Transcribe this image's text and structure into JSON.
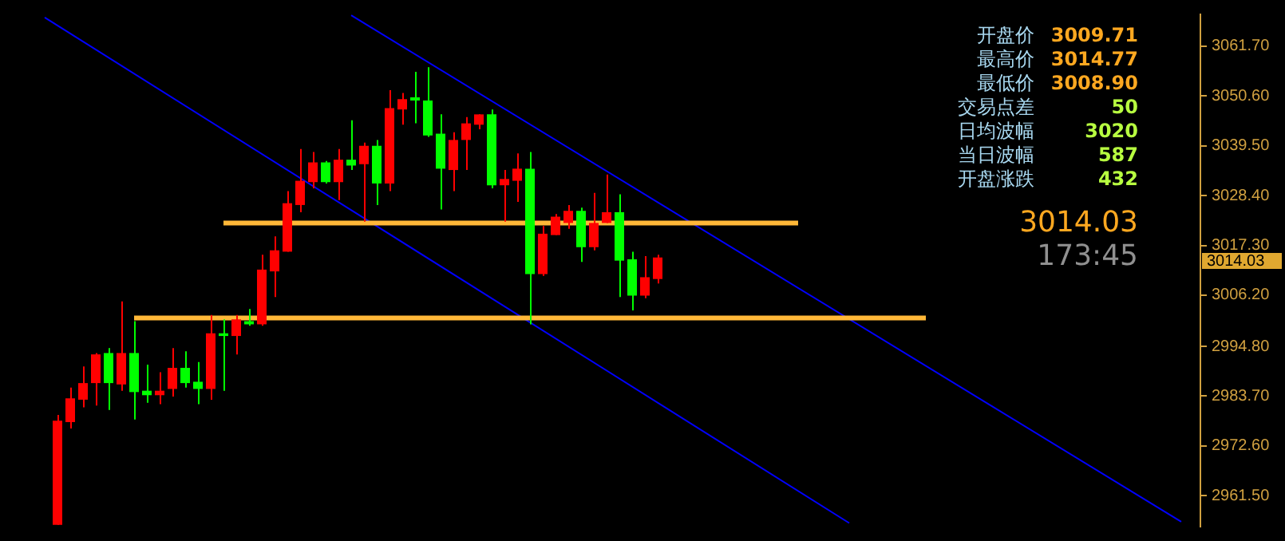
{
  "chart_data": {
    "type": "candlestick",
    "tick_labels": "y",
    "categories": [
      null,
      null,
      null,
      null,
      null,
      null,
      null,
      null,
      null,
      null,
      null,
      null,
      null,
      null,
      null,
      null,
      null,
      null,
      null,
      null,
      null,
      null,
      null,
      null,
      null,
      null,
      null,
      null,
      null,
      null,
      null,
      null,
      null,
      null,
      null,
      null,
      null,
      null,
      null,
      null,
      null,
      null,
      null,
      null,
      null,
      null,
      null,
      null,
      null,
      null,
      null,
      null,
      null,
      null,
      null,
      null,
      null,
      null,
      null,
      null,
      null,
      null,
      null,
      null,
      null,
      null,
      null,
      null,
      null,
      null,
      null,
      null,
      null,
      null,
      null,
      null,
      null,
      null,
      null,
      null,
      null,
      null,
      null,
      null,
      null,
      null,
      null,
      null,
      null,
      null,
      null,
      null,
      null,
      null
    ],
    "ylim": [
      2954.6,
      3068.8
    ],
    "yticks": [
      {
        "value": 2961.5,
        "label": "2961.50"
      },
      {
        "value": 2972.6,
        "label": "2972.60"
      },
      {
        "value": 2983.7,
        "label": "2983.70"
      },
      {
        "value": 2994.8,
        "label": "2994.80"
      },
      {
        "value": 3006.2,
        "label": "3006.20"
      },
      {
        "value": 3017.3,
        "label": "3017.30"
      },
      {
        "value": 3028.4,
        "label": "3028.40"
      },
      {
        "value": 3039.5,
        "label": "3039.50"
      },
      {
        "value": 3050.6,
        "label": "3050.60"
      },
      {
        "value": 3061.7,
        "label": "3061.70"
      }
    ],
    "series": [
      {
        "type": "candlestick",
        "ohlc": [
          null,
          null,
          null,
          null,
          [
            2978.2,
            2979.5,
            2955.0,
            2955.0
          ],
          [
            2983.2,
            2985.6,
            2976.5,
            2977.9
          ],
          [
            2986.6,
            2990.3,
            2981.2,
            2982.9
          ],
          [
            2993.0,
            2993.3,
            2981.6,
            2986.6
          ],
          [
            2986.6,
            2994.4,
            2980.6,
            2993.3
          ],
          [
            2993.3,
            3004.8,
            2984.9,
            2986.3
          ],
          [
            2984.6,
            3000.4,
            2978.5,
            2993.3
          ],
          [
            2983.9,
            2990.7,
            2982.2,
            2984.9
          ],
          [
            2984.9,
            2989.0,
            2981.9,
            2983.9
          ],
          [
            2990.0,
            2994.4,
            2983.6,
            2985.3
          ],
          [
            2986.6,
            2993.7,
            2985.6,
            2990.0
          ],
          [
            2985.3,
            2991.3,
            2981.9,
            2986.9
          ],
          [
            2997.7,
            3001.8,
            2982.9,
            2985.3
          ],
          [
            2997.1,
            3000.8,
            2984.9,
            2997.7
          ],
          [
            3000.8,
            3001.8,
            2993.0,
            2997.1
          ],
          [
            2999.7,
            3003.1,
            2999.4,
            3000.4
          ],
          [
            3011.9,
            3015.2,
            2999.4,
            2999.7
          ],
          [
            3016.2,
            3019.3,
            3005.8,
            3011.5
          ],
          [
            3026.7,
            3029.4,
            3015.9,
            3015.9
          ],
          [
            3031.7,
            3038.8,
            3024.7,
            3026.3
          ],
          [
            3035.8,
            3038.1,
            3030.0,
            3031.4
          ],
          [
            3031.4,
            3036.1,
            3031.1,
            3035.8
          ],
          [
            3036.4,
            3038.8,
            3027.4,
            3031.4
          ],
          [
            3035.1,
            3045.2,
            3034.1,
            3036.4
          ],
          [
            3039.5,
            3040.2,
            3022.6,
            3035.4
          ],
          [
            3031.1,
            3040.8,
            3026.3,
            3039.5
          ],
          [
            3047.9,
            3051.9,
            3029.4,
            3031.1
          ],
          [
            3049.9,
            3051.3,
            3044.2,
            3047.6
          ],
          [
            3049.6,
            3056.0,
            3044.5,
            3050.3
          ],
          [
            3041.8,
            3057.0,
            3041.5,
            3049.6
          ],
          [
            3034.4,
            3046.5,
            3025.3,
            3042.2
          ],
          [
            3040.8,
            3042.5,
            3029.4,
            3034.1
          ],
          [
            3044.5,
            3045.9,
            3034.1,
            3040.8
          ],
          [
            3046.5,
            3046.5,
            3043.2,
            3044.2
          ],
          [
            3030.7,
            3047.6,
            3030.0,
            3046.5
          ],
          [
            3032.1,
            3034.1,
            3022.6,
            3030.7
          ],
          [
            3034.4,
            3037.8,
            3027.0,
            3031.7
          ],
          [
            3010.9,
            3038.1,
            2999.7,
            3034.4
          ],
          [
            3019.9,
            3021.6,
            3010.5,
            3010.9
          ],
          [
            3023.7,
            3024.3,
            3019.6,
            3019.6
          ],
          [
            3025.0,
            3026.3,
            3021.0,
            3022.3
          ],
          [
            3016.9,
            3025.7,
            3013.6,
            3025.0
          ],
          [
            3022.3,
            3029.0,
            3016.2,
            3016.9
          ],
          [
            3024.7,
            3033.1,
            3022.3,
            3022.3
          ],
          [
            3013.9,
            3028.7,
            3005.8,
            3024.7
          ],
          [
            3006.1,
            3015.9,
            3002.8,
            3014.2
          ],
          [
            3010.2,
            3014.9,
            3005.5,
            3006.1
          ],
          [
            3014.6,
            3015.2,
            3008.8,
            3009.8
          ],
          null,
          null,
          null,
          null,
          null,
          null,
          null,
          null,
          null,
          null,
          null,
          null,
          null,
          null,
          null,
          null,
          null,
          null,
          null,
          null,
          null,
          null,
          null,
          null,
          null,
          null,
          null,
          null,
          null,
          null,
          null,
          null,
          null,
          null,
          null,
          null,
          null,
          null,
          null,
          null,
          null,
          null
        ],
        "colors": [
          null,
          null,
          null,
          null,
          "#ff0000",
          "#ff0000",
          "#ff0000",
          "#ff0000",
          "#00ff00",
          "#ff0000",
          "#00ff00",
          "#00ff00",
          "#ff0000",
          "#ff0000",
          "#00ff00",
          "#00ff00",
          "#ff0000",
          "#00ff00",
          "#ff0000",
          "#00ff00",
          "#ff0000",
          "#ff0000",
          "#ff0000",
          "#ff0000",
          "#ff0000",
          "#00ff00",
          "#ff0000",
          "#00ff00",
          "#ff0000",
          "#00ff00",
          "#ff0000",
          "#ff0000",
          "#00ff00",
          "#00ff00",
          "#00ff00",
          "#ff0000",
          "#ff0000",
          "#ff0000",
          "#00ff00",
          "#ff0000",
          "#ff0000",
          "#00ff00",
          "#ff0000",
          "#ff0000",
          "#ff0000",
          "#00ff00",
          "#ff0000",
          "#ff0000",
          "#00ff00",
          "#00ff00",
          "#ff0000",
          "#ff0000",
          null,
          null,
          null,
          null,
          null,
          null,
          null,
          null,
          null,
          null,
          null,
          null,
          null,
          null,
          null,
          null,
          null,
          null,
          null,
          null,
          null,
          null,
          null,
          null,
          null,
          null,
          null,
          null,
          null,
          null,
          null,
          null,
          null,
          null,
          null,
          null,
          null,
          null,
          null,
          null,
          null,
          null
        ]
      },
      {
        "type": "line",
        "color": "#ffb838",
        "values": [
          null,
          null,
          null,
          null,
          null,
          null,
          null,
          null,
          null,
          null,
          null,
          null,
          null,
          null,
          null,
          null,
          null,
          3022.3,
          null,
          null,
          null,
          null,
          null,
          null,
          null,
          null,
          null,
          null,
          null,
          null,
          null,
          null,
          null,
          null,
          null,
          null,
          null,
          null,
          null,
          null,
          null,
          null,
          null,
          null,
          null,
          null,
          null,
          null,
          null,
          null,
          null,
          null,
          null,
          null,
          null,
          null,
          null,
          null,
          null,
          null,
          null,
          null,
          3022.3,
          null,
          null,
          null,
          null,
          null,
          null,
          null,
          null,
          null,
          null,
          null,
          null,
          null,
          null,
          null,
          null,
          null,
          null,
          null,
          null,
          null,
          null,
          null,
          null,
          null,
          null,
          null,
          null,
          null,
          null,
          null
        ]
      },
      {
        "type": "line",
        "color": "#ffb838",
        "values": [
          null,
          null,
          null,
          null,
          null,
          null,
          null,
          null,
          null,
          null,
          3001.1,
          null,
          null,
          null,
          null,
          null,
          null,
          null,
          null,
          null,
          null,
          null,
          null,
          null,
          null,
          null,
          null,
          null,
          null,
          null,
          null,
          null,
          null,
          null,
          null,
          null,
          null,
          null,
          null,
          null,
          null,
          null,
          null,
          null,
          null,
          null,
          null,
          null,
          null,
          null,
          null,
          null,
          null,
          null,
          null,
          null,
          null,
          null,
          null,
          null,
          null,
          null,
          null,
          null,
          null,
          null,
          null,
          null,
          null,
          null,
          null,
          null,
          3001.1,
          null,
          null,
          null,
          null,
          null,
          null,
          null,
          null,
          null,
          null,
          null,
          null,
          null,
          null,
          null,
          null,
          null,
          null,
          null,
          null,
          null
        ]
      },
      {
        "type": "line",
        "color": "#0000ff",
        "values": [
          null,
          null,
          null,
          null,
          null,
          null,
          null,
          null,
          null,
          null,
          null,
          null,
          null,
          null,
          null,
          null,
          null,
          null,
          null,
          null,
          null,
          null,
          null,
          null,
          null,
          null,
          null,
          3068.6,
          null,
          null,
          null,
          null,
          null,
          null,
          null,
          null,
          null,
          null,
          null,
          null,
          null,
          null,
          null,
          null,
          null,
          null,
          null,
          null,
          null,
          null,
          null,
          null,
          null,
          null,
          null,
          null,
          null,
          null,
          null,
          null,
          null,
          null,
          null,
          null,
          null,
          null,
          null,
          null,
          null,
          null,
          null,
          null,
          null,
          null,
          null,
          null,
          null,
          null,
          null,
          null,
          null,
          null,
          null,
          null,
          null,
          null,
          null,
          null,
          null,
          null,
          null,
          null,
          2955.7,
          null
        ]
      },
      {
        "type": "line",
        "color": "#0000ff",
        "values": [
          null,
          null,
          null,
          3068.1,
          null,
          null,
          null,
          null,
          null,
          null,
          null,
          null,
          null,
          null,
          null,
          null,
          null,
          null,
          null,
          null,
          null,
          null,
          null,
          null,
          null,
          null,
          null,
          null,
          null,
          null,
          null,
          null,
          null,
          null,
          null,
          null,
          null,
          null,
          null,
          null,
          null,
          null,
          null,
          null,
          null,
          null,
          null,
          null,
          null,
          null,
          null,
          null,
          null,
          null,
          null,
          null,
          null,
          null,
          null,
          null,
          null,
          null,
          null,
          null,
          null,
          null,
          2955.4,
          null,
          null,
          null,
          null,
          null,
          null,
          null,
          null,
          null,
          null,
          null,
          null,
          null,
          null,
          null,
          null,
          null,
          null,
          null,
          null,
          null,
          null,
          null,
          null,
          null,
          null,
          null
        ]
      }
    ],
    "annotations": [
      "开盘价",
      "3009.71",
      "最高价",
      "3014.77",
      "最低价",
      "3008.90",
      "交易点差",
      "50",
      "日均波幅",
      "3020",
      "当日波幅",
      "587",
      "开盘涨跌",
      "432",
      "3014.03",
      "173:45",
      "3014.03"
    ]
  }
}
